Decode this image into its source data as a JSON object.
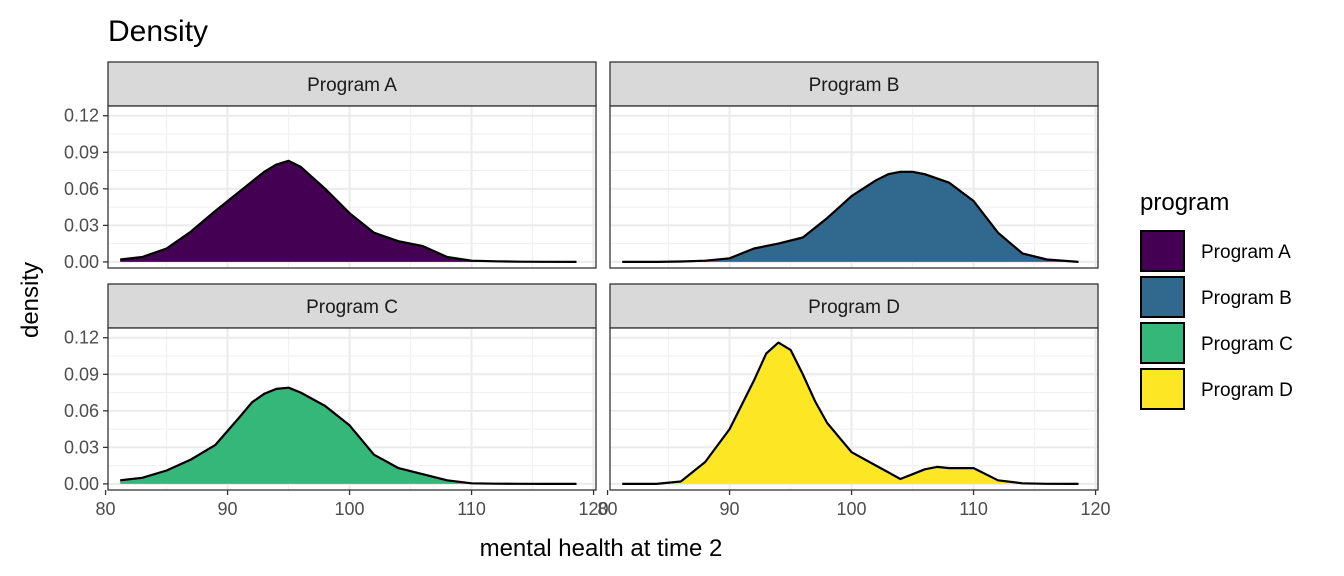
{
  "chart_data": {
    "type": "area",
    "title": "Density",
    "xlabel": "mental health at time 2",
    "ylabel": "density",
    "xlim": [
      80.2,
      120.2
    ],
    "ylim": [
      -0.005,
      0.128
    ],
    "x_ticks": [
      80,
      90,
      100,
      110,
      120
    ],
    "y_ticks": [
      0.0,
      0.03,
      0.06,
      0.09,
      0.12
    ],
    "y_tick_labels": [
      "0.00",
      "0.03",
      "0.06",
      "0.09",
      "0.12"
    ],
    "grid": true,
    "facet_by": "program",
    "legend": {
      "title": "program",
      "position": "right",
      "entries": [
        "Program A",
        "Program B",
        "Program C",
        "Program D"
      ]
    },
    "series": [
      {
        "name": "Program A",
        "color": "#440154",
        "x": [
          81.2,
          83,
          85,
          87,
          89,
          91,
          93,
          94,
          95,
          96,
          98,
          100,
          102,
          104,
          106,
          108,
          110,
          112,
          114,
          116,
          118.6
        ],
        "y": [
          0.002,
          0.004,
          0.011,
          0.025,
          0.042,
          0.058,
          0.074,
          0.08,
          0.083,
          0.078,
          0.06,
          0.04,
          0.024,
          0.017,
          0.013,
          0.004,
          0.001,
          0.0005,
          0.0002,
          0.0001,
          0.0
        ]
      },
      {
        "name": "Program B",
        "color": "#31688E",
        "x": [
          81.2,
          84,
          86,
          88,
          90,
          91,
          92,
          94,
          96,
          98,
          100,
          102,
          103,
          104,
          105,
          106,
          108,
          110,
          112,
          114,
          116,
          118.6
        ],
        "y": [
          0.0,
          0.0,
          0.0003,
          0.001,
          0.003,
          0.007,
          0.011,
          0.015,
          0.02,
          0.036,
          0.054,
          0.067,
          0.072,
          0.074,
          0.074,
          0.072,
          0.065,
          0.05,
          0.024,
          0.007,
          0.002,
          0.0
        ]
      },
      {
        "name": "Program C",
        "color": "#35B779",
        "x": [
          81.2,
          83,
          85,
          87,
          89,
          91,
          92,
          93,
          94,
          95,
          96,
          98,
          100,
          102,
          104,
          106,
          108,
          110,
          112,
          114,
          116,
          118.6
        ],
        "y": [
          0.003,
          0.005,
          0.011,
          0.02,
          0.032,
          0.055,
          0.067,
          0.074,
          0.078,
          0.079,
          0.075,
          0.064,
          0.048,
          0.024,
          0.013,
          0.008,
          0.003,
          0.0005,
          0.0002,
          0.0001,
          0.0,
          0.0
        ]
      },
      {
        "name": "Program D",
        "color": "#FDE725",
        "x": [
          81.2,
          84,
          86,
          88,
          90,
          92,
          93,
          94,
          95,
          96,
          97,
          98,
          100,
          102,
          104,
          105,
          106,
          107,
          108,
          109,
          110,
          112,
          114,
          116,
          118.6
        ],
        "y": [
          0.0,
          0.0,
          0.002,
          0.018,
          0.045,
          0.085,
          0.107,
          0.116,
          0.11,
          0.09,
          0.068,
          0.05,
          0.026,
          0.015,
          0.004,
          0.008,
          0.012,
          0.014,
          0.013,
          0.013,
          0.013,
          0.003,
          0.0005,
          0.0001,
          0.0
        ]
      }
    ]
  }
}
